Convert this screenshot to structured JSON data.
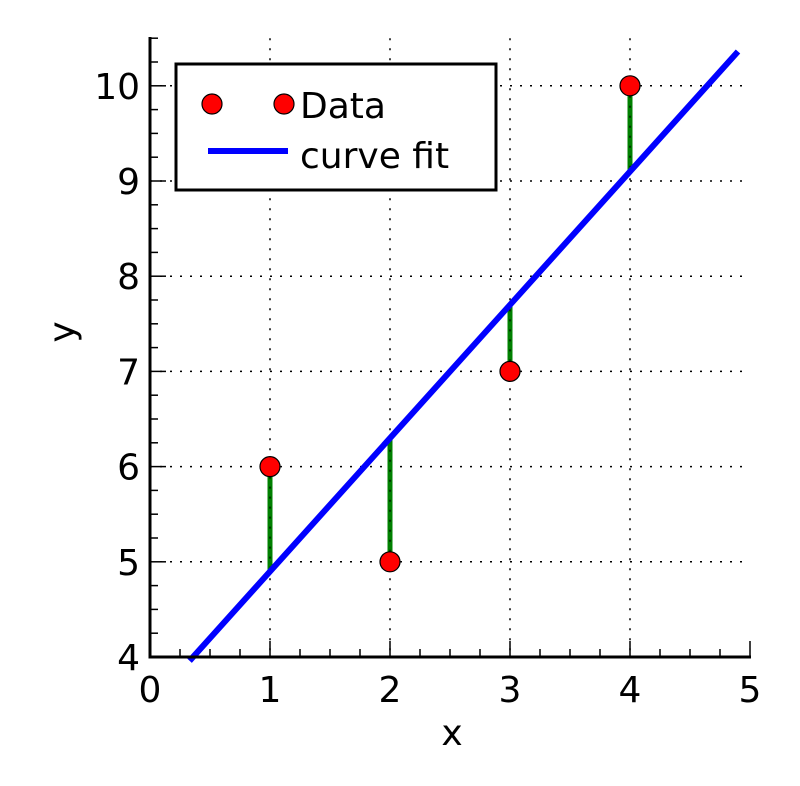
{
  "chart_data": {
    "type": "scatter",
    "title": "",
    "xlabel": "x",
    "ylabel": "y",
    "xlim": [
      0,
      5
    ],
    "ylim": [
      4,
      10.5
    ],
    "xticks": [
      0,
      1,
      2,
      3,
      4,
      5
    ],
    "yticks": [
      4,
      5,
      6,
      7,
      8,
      9,
      10
    ],
    "xtick_labels": [
      "0",
      "1",
      "2",
      "3",
      "4",
      "5"
    ],
    "ytick_labels": [
      "4",
      "5",
      "6",
      "7",
      "8",
      "9",
      "10"
    ],
    "grid": true,
    "legend_position": "upper left",
    "series": [
      {
        "name": "Data",
        "kind": "markers",
        "color": "#ff0000",
        "x": [
          1,
          2,
          3,
          4
        ],
        "y": [
          6,
          5,
          7,
          10
        ]
      },
      {
        "name": "curve fit",
        "kind": "line",
        "color": "#0000ff",
        "slope": 1.4,
        "intercept": 3.5,
        "x": [
          0.33,
          4.9
        ],
        "y": [
          3.96,
          10.36
        ]
      }
    ],
    "residuals": {
      "color": "#008000",
      "x": [
        1,
        2,
        3,
        4
      ],
      "from_y": [
        6,
        5,
        7,
        10
      ],
      "to_y": [
        4.9,
        6.3,
        7.7,
        9.1
      ]
    }
  },
  "legend": {
    "items": [
      {
        "label": "Data"
      },
      {
        "label": "curve fit"
      }
    ]
  },
  "axes": {
    "xlabel": "x",
    "ylabel": "y"
  }
}
